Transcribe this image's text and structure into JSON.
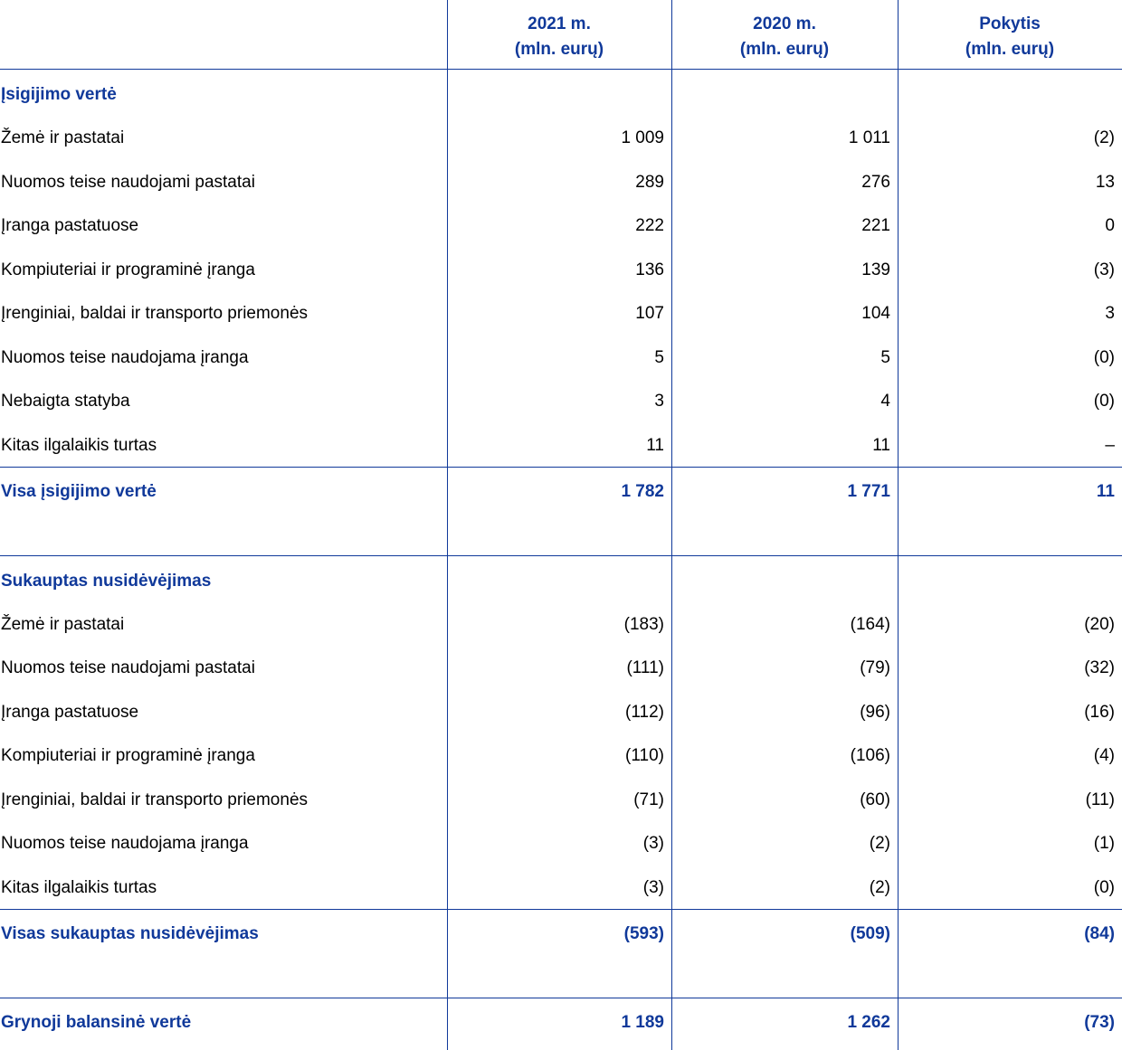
{
  "header": {
    "columns": [
      {
        "year": "2021 m.",
        "unit": "(mln. eurų)"
      },
      {
        "year": "2020 m.",
        "unit": "(mln. eurų)"
      },
      {
        "year": "Pokytis",
        "unit": "(mln. eurų)"
      }
    ]
  },
  "sections": [
    {
      "title": "Įsigijimo vertė",
      "rows": [
        [
          "Žemė ir pastatai",
          "1 009",
          "1 011",
          "(2)"
        ],
        [
          "Nuomos teise naudojami pastatai",
          "289",
          "276",
          "13"
        ],
        [
          "Įranga pastatuose",
          "222",
          "221",
          "0"
        ],
        [
          "Kompiuteriai ir programinė įranga",
          "136",
          "139",
          "(3)"
        ],
        [
          "Įrenginiai, baldai ir transporto priemonės",
          "107",
          "104",
          "3"
        ],
        [
          "Nuomos teise naudojama įranga",
          "5",
          "5",
          "(0)"
        ],
        [
          "Nebaigta statyba",
          "3",
          "4",
          "(0)"
        ],
        [
          "Kitas ilgalaikis turtas",
          "11",
          "11",
          "–"
        ]
      ],
      "total": [
        "Visa įsigijimo vertė",
        "1 782",
        "1 771",
        "11"
      ]
    },
    {
      "title": "Sukauptas nusidėvėjimas",
      "rows": [
        [
          "Žemė ir pastatai",
          "(183)",
          "(164)",
          "(20)"
        ],
        [
          "Nuomos teise naudojami pastatai",
          "(111)",
          "(79)",
          "(32)"
        ],
        [
          "Įranga pastatuose",
          "(112)",
          "(96)",
          "(16)"
        ],
        [
          "Kompiuteriai ir programinė įranga",
          "(110)",
          "(106)",
          "(4)"
        ],
        [
          "Įrenginiai, baldai ir transporto priemonės",
          "(71)",
          "(60)",
          "(11)"
        ],
        [
          "Nuomos teise naudojama įranga",
          "(3)",
          "(2)",
          "(1)"
        ],
        [
          "Kitas ilgalaikis turtas",
          "(3)",
          "(2)",
          "(0)"
        ]
      ],
      "total": [
        "Visas sukauptas nusidėvėjimas",
        "(593)",
        "(509)",
        "(84)"
      ]
    }
  ],
  "net": [
    "Grynoji balansinė vertė",
    "1 189",
    "1 262",
    "(73)"
  ]
}
